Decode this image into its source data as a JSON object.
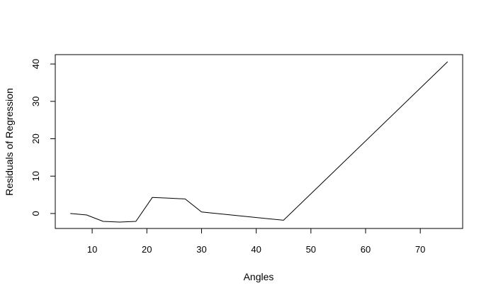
{
  "chart_data": {
    "type": "line",
    "title": "",
    "xlabel": "Angles",
    "ylabel": "Residuals of Regression",
    "xlim": [
      3.25,
      77.75
    ],
    "ylim": [
      -4.0,
      42.5
    ],
    "xticks": [
      10,
      20,
      30,
      40,
      50,
      60,
      70
    ],
    "yticks": [
      0,
      10,
      20,
      30,
      40
    ],
    "grid": false,
    "legend": "none",
    "line_color": "#000000",
    "series": [
      {
        "x": [
          6,
          9,
          12,
          15,
          18,
          21,
          24,
          27,
          30,
          45,
          75
        ],
        "y": [
          0.0,
          -0.4,
          -2.1,
          -2.3,
          -2.1,
          4.3,
          4.1,
          3.9,
          0.4,
          -1.8,
          40.6
        ]
      }
    ]
  }
}
